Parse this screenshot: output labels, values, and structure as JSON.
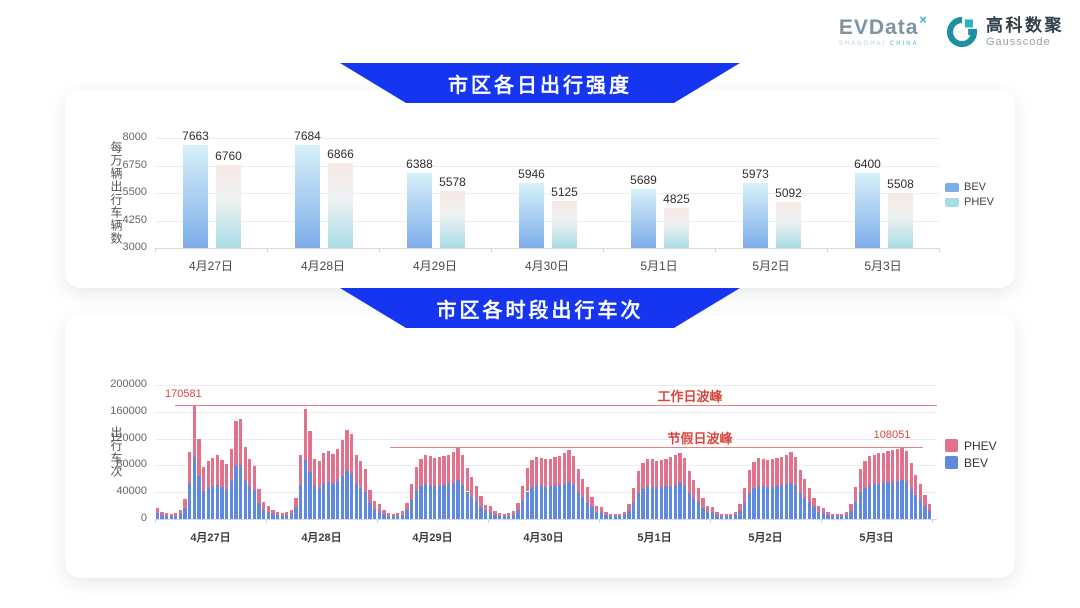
{
  "header": {
    "evdata": {
      "name": "EVData",
      "sup": "×",
      "sub_left": "SHANGHAI",
      "sub_right": "CHINA"
    },
    "gausscode": {
      "cn": "高科数聚",
      "en": "Gausscode"
    }
  },
  "colors": {
    "banner_blue": "#1535f0",
    "annotation_red": "#d9463e",
    "annotation_line_red": "#e88383",
    "bev_bar_top": "#d8f1f9",
    "bev_bar_bottom": "#7cade9",
    "phev_bar_top": "#f7e9e6",
    "phev_bar_mid": "#eef1f1",
    "phev_bar_bottom": "#a9dde6",
    "legend_bev1": "#7cade9",
    "legend_phev1": "#a9dde6",
    "bev2": "#6089e0",
    "phev2": "#e2718c"
  },
  "chart_data": [
    {
      "type": "bar",
      "title": "市区各日出行强度",
      "ylabel": "每万辆出行车辆数",
      "ymin": 3000,
      "ymax": 8000,
      "yticks": [
        3000,
        4250,
        5500,
        6750,
        8000
      ],
      "grid": true,
      "legend_position": "right",
      "categories": [
        "4月27日",
        "4月28日",
        "4月29日",
        "4月30日",
        "5月1日",
        "5月2日",
        "5月3日"
      ],
      "series": [
        {
          "name": "BEV",
          "values": [
            7663,
            7684,
            6388,
            5946,
            5689,
            5973,
            6400
          ]
        },
        {
          "name": "PHEV",
          "values": [
            6760,
            6866,
            5578,
            5125,
            4825,
            5092,
            5508
          ]
        }
      ],
      "legend": [
        "BEV",
        "PHEV"
      ]
    },
    {
      "type": "stacked-bar",
      "title": "市区各时段出行车次",
      "ylabel": "出行车次",
      "ymin": 0,
      "ymax": 200000,
      "yticks": [
        0,
        40000,
        80000,
        120000,
        160000,
        200000
      ],
      "grid": true,
      "legend_position": "right",
      "hours_per_day": 24,
      "stack_order_bottom_to_top": [
        "BEV",
        "PHEV"
      ],
      "bev_share_of_total": 0.54,
      "categories": [
        "4月27日",
        "4月28日",
        "4月29日",
        "4月30日",
        "5月1日",
        "5月2日",
        "5月3日"
      ],
      "hourly_totals": [
        [
          16000,
          11000,
          9000,
          8000,
          9000,
          13000,
          30000,
          100000,
          170581,
          119000,
          77000,
          86000,
          91000,
          95000,
          88000,
          82000,
          105000,
          146000,
          149000,
          108000,
          89000,
          79000,
          45000,
          26000
        ],
        [
          20000,
          14000,
          10000,
          9000,
          10000,
          14000,
          32000,
          95000,
          164000,
          131000,
          90000,
          86000,
          99000,
          102000,
          97000,
          104000,
          118000,
          133000,
          127000,
          96000,
          86000,
          74000,
          44000,
          27000
        ],
        [
          22000,
          13000,
          9000,
          8000,
          9000,
          12000,
          24000,
          52000,
          78000,
          90000,
          96000,
          94000,
          91000,
          92000,
          94000,
          96000,
          100000,
          107000,
          95000,
          76000,
          62000,
          50000,
          34000,
          21000
        ],
        [
          20000,
          12000,
          9000,
          8000,
          9000,
          12000,
          24000,
          50000,
          76000,
          88000,
          93000,
          91000,
          89000,
          90000,
          92000,
          94000,
          98000,
          103000,
          94000,
          74000,
          60000,
          48000,
          33000,
          20000
        ],
        [
          18000,
          11000,
          8000,
          7000,
          8000,
          11000,
          22000,
          46000,
          72000,
          84000,
          90000,
          89000,
          87000,
          88000,
          90000,
          92000,
          95000,
          99000,
          91000,
          72000,
          58000,
          46000,
          31000,
          19000
        ],
        [
          18000,
          11000,
          8000,
          7000,
          8000,
          11000,
          22000,
          46000,
          73000,
          85000,
          91000,
          90000,
          88000,
          89000,
          91000,
          93000,
          96000,
          100000,
          92000,
          73000,
          59000,
          47000,
          32000,
          19000
        ],
        [
          17000,
          11000,
          8000,
          7000,
          8000,
          11000,
          23000,
          48000,
          74000,
          87000,
          94000,
          96000,
          98000,
          99000,
          101000,
          103000,
          105000,
          108051,
          102000,
          84000,
          66000,
          52000,
          36000,
          22000
        ]
      ],
      "annotations": [
        {
          "id": "workday_peak",
          "label": "工作日波峰",
          "value": 170581,
          "value_label": "170581"
        },
        {
          "id": "holiday_peak",
          "label": "节假日波峰",
          "value": 108051,
          "value_label": "108051"
        }
      ],
      "legend": [
        "PHEV",
        "BEV"
      ]
    }
  ]
}
